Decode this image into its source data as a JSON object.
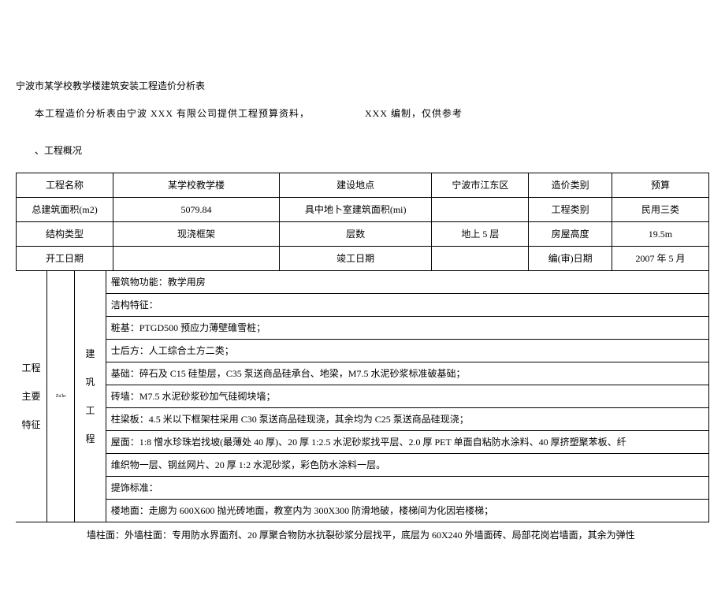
{
  "title": "宁波市某学校教学楼建筑安装工程造价分析表",
  "intro_a": "本工程造价分析表由宁波 XXX 有限公司提供工程预算资料，",
  "intro_b": "XXX 编制，仅供参考",
  "section1": "、工程概况",
  "header": {
    "r1": {
      "c1": "工程名称",
      "c2": "某学校教学楼",
      "c3": "建设地点",
      "c4": "宁波市江东区",
      "c5": "造价类别",
      "c6": "预算"
    },
    "r2": {
      "c1": "总建筑面积(m2)",
      "c2": "5079.84",
      "c3": "具中地卜室建筑面积(mi)",
      "c4": "",
      "c5": "工程类别",
      "c6": "民用三类"
    },
    "r3": {
      "c1": "结构类型",
      "c2": "现浇框架",
      "c3": "层数",
      "c4": "地上 5 层",
      "c5": "房屋高度",
      "c6": "19.5m"
    },
    "r4": {
      "c1": "开工日期",
      "c2": "",
      "c3": "竣工日期",
      "c4": "",
      "c5": "编(审)日期",
      "c6": "2007 年 5 月"
    }
  },
  "left": {
    "l1": "工程",
    "l2": "主要",
    "l3": "特征",
    "m_small": "Zu'kr",
    "m1": "建",
    "m2": "巩",
    "m3": "工",
    "m4": "程"
  },
  "body": {
    "b1": "罹筑物功能：教学用房",
    "b2": "洁构特征：",
    "b3": "粧基：PTGD500 预应力薄壁碓雪桩；",
    "b4": "士后方：人工综合土方二类；",
    "b5": "基础：碎石及 C15 硅垫层，C35 泵送商品硅承台、地梁，M7.5 水泥砂浆标准破基础；",
    "b6": "砖墙：M7.5 水泥砂浆砂加气硅砌块墙；",
    "b7": "柱梁板：4.5 米以下框架柱采用 C30 泵送商品硅现浇，其余均为 C25 泵送商品硅现浇；",
    "b8": "屋面：1:8 憎水珍珠岩找坡(最薄处 40 厚)、20 厚 1:2.5 水泥砂浆找平层、2.0 厚 PET 单面自粘防水涂料、40 厚挤塑聚苯板、纤",
    "b9": "维织物一层、钢丝网片、20 厚 1:2 水泥砂浆，彩色防水涂料一层。",
    "b10": "提饰标准：",
    "b11": "楼地面：走廊为 600X600 抛光砖地面，教室内为 300X300 防滑地破，楼梯间为化因岩楼梯；"
  },
  "after": "墙柱面：外墙柱面：专用防水界面剂、20 厚聚合物防水抗裂砂浆分层找平，底层为 60X240 外墙面砖、局部花岗岩墙面，其余为弹性"
}
